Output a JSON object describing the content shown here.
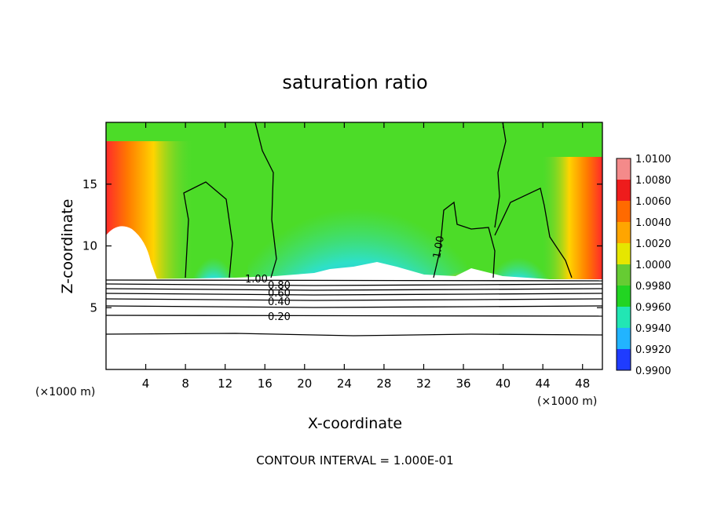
{
  "chart_data": {
    "type": "contour",
    "title": "saturation ratio",
    "xlabel": "X-coordinate",
    "ylabel": "Z-coordinate",
    "x_unit": "(×1000 m)",
    "x_unit_right": "(×1000 m)",
    "xlim": [
      0,
      50
    ],
    "ylim": [
      0,
      20
    ],
    "x_ticks": [
      4,
      8,
      12,
      16,
      20,
      24,
      28,
      32,
      36,
      40,
      44,
      48
    ],
    "y_ticks": [
      5,
      10,
      15
    ],
    "colorbar": {
      "levels": [
        "1.0100",
        "1.0080",
        "1.0060",
        "1.0040",
        "1.0020",
        "1.0000",
        "0.9980",
        "0.9960",
        "0.9940",
        "0.9920",
        "0.9900"
      ],
      "colors": [
        "#f48a8a",
        "#ee1c1c",
        "#ff6a00",
        "#ffa500",
        "#e6e600",
        "#66cc33",
        "#22d422",
        "#22e6b4",
        "#22b4ff",
        "#1f3cff",
        "#7a1fb4"
      ]
    },
    "contour_labels": [
      "1.00",
      "0.80",
      "0.60",
      "0.40",
      "0.20",
      "1.00"
    ],
    "contour_levels": [
      0.2,
      0.4,
      0.6,
      0.8,
      1.0
    ],
    "contour_interval_text": "CONTOUR INTERVAL = 1.000E-01"
  }
}
